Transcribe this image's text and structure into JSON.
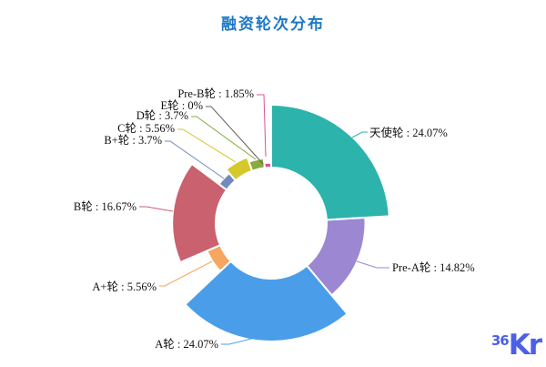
{
  "page": {
    "background": "#ffffff"
  },
  "watermark": {
    "prefix": "36",
    "brand": "Kr",
    "color": "#4d5fe8"
  },
  "chart_data": {
    "type": "pie",
    "variant": "nightingale-rose-donut",
    "title": "融资轮次分布",
    "title_color": "#1d79c5",
    "unit": "%",
    "clockwise": true,
    "start_at_top": true,
    "legend_position": "none",
    "label_separator": " : ",
    "series": [
      {
        "key": "angel-round",
        "name": "天使轮",
        "value": 24.07,
        "pct_label": "24.07%",
        "color": "#2cb3ab"
      },
      {
        "key": "pre-a-round",
        "name": "Pre-A轮",
        "value": 14.82,
        "pct_label": "14.82%",
        "color": "#9b87d2"
      },
      {
        "key": "a-round",
        "name": "A轮",
        "value": 24.07,
        "pct_label": "24.07%",
        "color": "#4a9de8"
      },
      {
        "key": "a-plus-round",
        "name": "A+轮",
        "value": 5.56,
        "pct_label": "5.56%",
        "color": "#f6a660"
      },
      {
        "key": "b-round",
        "name": "B轮",
        "value": 16.67,
        "pct_label": "16.67%",
        "color": "#c9616e"
      },
      {
        "key": "b-plus-round",
        "name": "B+轮",
        "value": 3.7,
        "pct_label": "3.7%",
        "color": "#7189be"
      },
      {
        "key": "c-round",
        "name": "C轮",
        "value": 5.56,
        "pct_label": "5.56%",
        "color": "#d5c82b"
      },
      {
        "key": "d-round",
        "name": "D轮",
        "value": 3.7,
        "pct_label": "3.7%",
        "color": "#88aa3f"
      },
      {
        "key": "e-round",
        "name": "E轮",
        "value": 0,
        "pct_label": "0%",
        "color": "#6a5d55"
      },
      {
        "key": "pre-b-round",
        "name": "Pre-B轮",
        "value": 1.85,
        "pct_label": "1.85%",
        "color": "#e0519b"
      }
    ]
  }
}
